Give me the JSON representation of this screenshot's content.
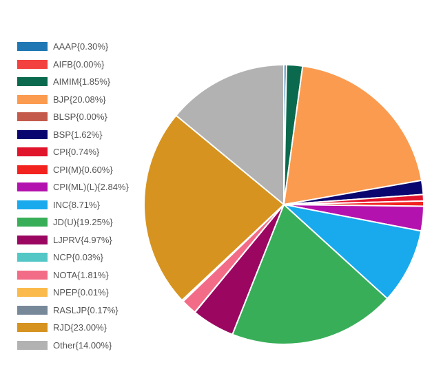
{
  "chart_data": {
    "type": "pie",
    "legend_position": "left",
    "slices": [
      {
        "label": "AAAP{0.30%}",
        "value": 0.3,
        "color": "#1f77b4"
      },
      {
        "label": "AIFB{0.00%}",
        "value": 0.0,
        "color": "#f2413f"
      },
      {
        "label": "AIMIM{1.85%}",
        "value": 1.85,
        "color": "#0b6a4e"
      },
      {
        "label": "BJP{20.08%}",
        "value": 20.08,
        "color": "#fb9b50"
      },
      {
        "label": "BLSP{0.00%}",
        "value": 0.0,
        "color": "#c35a4b"
      },
      {
        "label": "BSP{1.62%}",
        "value": 1.62,
        "color": "#0a0670"
      },
      {
        "label": "CPI{0.74%}",
        "value": 0.74,
        "color": "#e0142b"
      },
      {
        "label": "CPI(M){0.60%}",
        "value": 0.6,
        "color": "#f2221f"
      },
      {
        "label": "CPI(ML)(L){2.84%}",
        "value": 2.84,
        "color": "#b412ae"
      },
      {
        "label": "INC{8.71%}",
        "value": 8.71,
        "color": "#18aaed"
      },
      {
        "label": "JD(U){19.25%}",
        "value": 19.25,
        "color": "#38ae58"
      },
      {
        "label": "LJPRV{4.97%}",
        "value": 4.97,
        "color": "#9a0660"
      },
      {
        "label": "NCP{0.03%}",
        "value": 0.03,
        "color": "#52c7c6"
      },
      {
        "label": "NOTA{1.81%}",
        "value": 1.81,
        "color": "#f26c88"
      },
      {
        "label": "NPEP{0.01%}",
        "value": 0.01,
        "color": "#fbbb4c"
      },
      {
        "label": "RASLJP{0.17%}",
        "value": 0.17,
        "color": "#778899"
      },
      {
        "label": "RJD{23.00%}",
        "value": 23.0,
        "color": "#d6931f"
      },
      {
        "label": "Other{14.00%}",
        "value": 14.0,
        "color": "#b2b2b2"
      }
    ]
  }
}
